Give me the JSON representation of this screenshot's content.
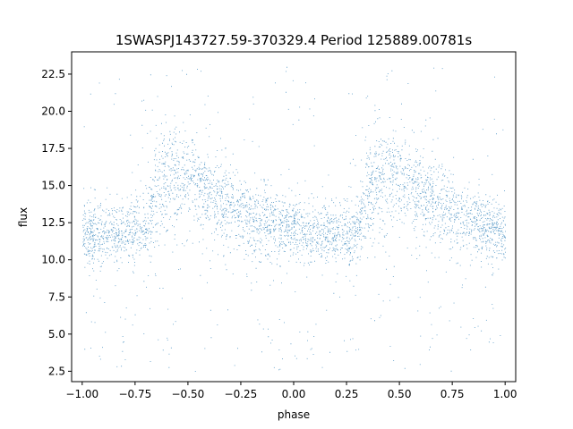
{
  "chart_data": {
    "type": "scatter",
    "title": "1SWASPJ143727.59-370329.4 Period 125889.00781s",
    "xlabel": "phase",
    "ylabel": "flux",
    "xlim": [
      -1.05,
      1.05
    ],
    "ylim": [
      1.8,
      24.0
    ],
    "xticks": [
      -1.0,
      -0.75,
      -0.5,
      -0.25,
      0.0,
      0.25,
      0.5,
      0.75,
      1.0
    ],
    "xtick_labels": [
      "−1.00",
      "−0.75",
      "−0.50",
      "−0.25",
      "0.00",
      "0.25",
      "0.50",
      "0.75",
      "1.00"
    ],
    "yticks": [
      2.5,
      5.0,
      7.5,
      10.0,
      12.5,
      15.0,
      17.5,
      20.0,
      22.5
    ],
    "ytick_labels": [
      "2.5",
      "5.0",
      "7.5",
      "10.0",
      "12.5",
      "15.0",
      "17.5",
      "20.0",
      "22.5"
    ],
    "grid": false,
    "marker_color": "#1f77b4",
    "series": [
      {
        "phase": [
          -1.0,
          -0.9,
          -0.8,
          -0.7,
          -0.65,
          -0.6,
          -0.55,
          -0.5,
          -0.45,
          -0.4,
          -0.3,
          -0.2,
          -0.1,
          0.0,
          0.1,
          0.2,
          0.3,
          0.35,
          0.4,
          0.45,
          0.5,
          0.55,
          0.6,
          0.7,
          0.8,
          0.9,
          1.0
        ],
        "median_flux": [
          11.8,
          11.7,
          11.8,
          12.0,
          14.8,
          15.6,
          15.8,
          15.4,
          15.0,
          14.6,
          13.6,
          12.9,
          12.3,
          12.0,
          11.8,
          11.7,
          12.0,
          14.8,
          15.6,
          15.8,
          15.4,
          15.0,
          14.6,
          13.6,
          12.9,
          12.3,
          11.8
        ],
        "upper_flux": [
          14.2,
          14.0,
          14.3,
          15.0,
          18.8,
          19.2,
          19.4,
          19.0,
          18.4,
          17.6,
          16.4,
          15.4,
          14.6,
          14.2,
          14.0,
          14.0,
          15.0,
          18.8,
          19.2,
          19.4,
          19.0,
          18.4,
          17.6,
          16.4,
          15.4,
          14.6,
          14.2
        ],
        "lower_flux": [
          9.6,
          9.6,
          9.8,
          10.0,
          10.4,
          10.8,
          11.0,
          11.2,
          11.0,
          10.8,
          10.4,
          10.0,
          9.8,
          9.6,
          9.6,
          9.6,
          10.0,
          10.4,
          10.8,
          11.0,
          11.2,
          11.0,
          10.8,
          10.4,
          10.0,
          9.8,
          9.6
        ]
      }
    ]
  }
}
